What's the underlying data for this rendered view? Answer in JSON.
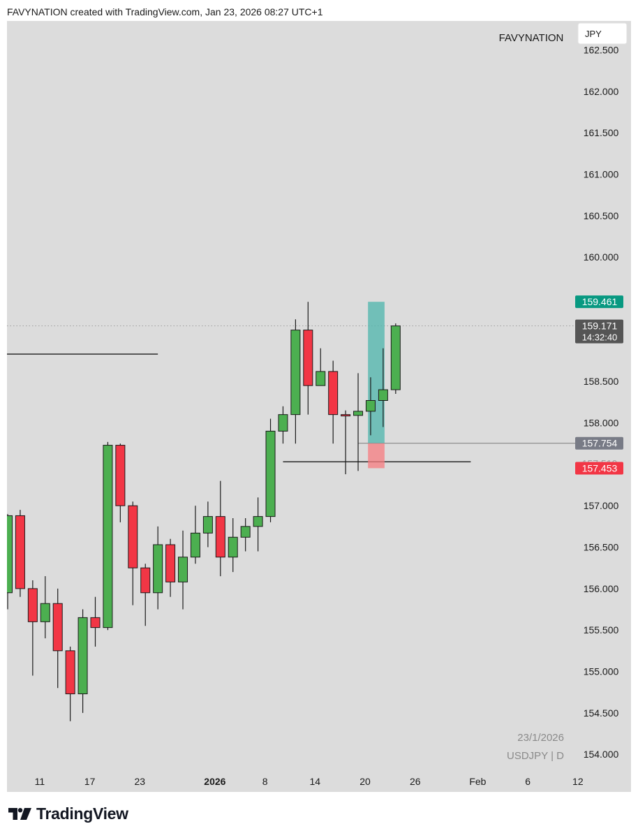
{
  "header": {
    "text": "FAVYNATION created with TradingView.com, Jan 23, 2026 08:27 UTC+1"
  },
  "chart_header": {
    "author": "FAVYNATION",
    "currency": "JPY"
  },
  "watermark": {
    "date": "23/1/2026",
    "symbol": "USDJPY | D"
  },
  "footer": {
    "brand": "TradingView",
    "logo_icon": "tradingview-logo-icon"
  },
  "colors": {
    "background": "#dcdcdc",
    "up": "#4caf50",
    "down": "#f23645",
    "wick": "#1a1a1a",
    "target_zone": "#4db6ac",
    "stop_zone": "#f77c80",
    "target_badge": "#089981",
    "stop_badge": "#f23645",
    "price_badge": "#555555",
    "entry_badge": "#787b86"
  },
  "chart_data": {
    "type": "candlestick",
    "symbol": "USDJPY",
    "timeframe": "D",
    "ylim": [
      153.85,
      162.85
    ],
    "y_ticks": [
      "162.500",
      "162.000",
      "161.500",
      "161.000",
      "160.500",
      "160.000",
      "158.500",
      "158.000",
      "157.000",
      "156.500",
      "156.000",
      "155.500",
      "155.000",
      "154.500",
      "154.000"
    ],
    "x_ticks": [
      {
        "label": "11",
        "index": 2,
        "bold": false
      },
      {
        "label": "17",
        "index": 6,
        "bold": false
      },
      {
        "label": "23",
        "index": 10,
        "bold": false
      },
      {
        "label": "2026",
        "index": 16,
        "bold": true
      },
      {
        "label": "8",
        "index": 20,
        "bold": false
      },
      {
        "label": "14",
        "index": 24,
        "bold": false
      },
      {
        "label": "20",
        "index": 28,
        "bold": false
      },
      {
        "label": "26",
        "index": 32,
        "bold": false
      },
      {
        "label": "Feb",
        "index": 37,
        "bold": false
      },
      {
        "label": "6",
        "index": 41,
        "bold": false
      },
      {
        "label": "12",
        "index": 45,
        "bold": false
      }
    ],
    "candles": [
      {
        "o": 155.95,
        "h": 156.9,
        "l": 155.75,
        "c": 156.88
      },
      {
        "o": 156.88,
        "h": 156.95,
        "l": 155.9,
        "c": 156.0
      },
      {
        "o": 156.0,
        "h": 156.1,
        "l": 154.95,
        "c": 155.6
      },
      {
        "o": 155.6,
        "h": 156.15,
        "l": 155.4,
        "c": 155.82
      },
      {
        "o": 155.82,
        "h": 156.0,
        "l": 154.8,
        "c": 155.25
      },
      {
        "o": 155.25,
        "h": 155.3,
        "l": 154.4,
        "c": 154.73
      },
      {
        "o": 154.73,
        "h": 155.75,
        "l": 154.5,
        "c": 155.65
      },
      {
        "o": 155.65,
        "h": 155.9,
        "l": 155.3,
        "c": 155.53
      },
      {
        "o": 155.53,
        "h": 157.77,
        "l": 155.5,
        "c": 157.73
      },
      {
        "o": 157.73,
        "h": 157.75,
        "l": 156.8,
        "c": 157.0
      },
      {
        "o": 157.0,
        "h": 157.05,
        "l": 155.8,
        "c": 156.25
      },
      {
        "o": 156.25,
        "h": 156.3,
        "l": 155.55,
        "c": 155.95
      },
      {
        "o": 155.95,
        "h": 156.75,
        "l": 155.75,
        "c": 156.53
      },
      {
        "o": 156.53,
        "h": 156.6,
        "l": 155.9,
        "c": 156.08
      },
      {
        "o": 156.08,
        "h": 156.7,
        "l": 155.75,
        "c": 156.38
      },
      {
        "o": 156.38,
        "h": 157.0,
        "l": 156.3,
        "c": 156.67
      },
      {
        "o": 156.67,
        "h": 157.05,
        "l": 156.5,
        "c": 156.87
      },
      {
        "o": 156.87,
        "h": 157.3,
        "l": 156.15,
        "c": 156.38
      },
      {
        "o": 156.38,
        "h": 156.85,
        "l": 156.2,
        "c": 156.62
      },
      {
        "o": 156.62,
        "h": 156.85,
        "l": 156.45,
        "c": 156.75
      },
      {
        "o": 156.75,
        "h": 157.1,
        "l": 156.45,
        "c": 156.87
      },
      {
        "o": 156.87,
        "h": 158.05,
        "l": 156.8,
        "c": 157.9
      },
      {
        "o": 157.9,
        "h": 158.2,
        "l": 157.75,
        "c": 158.1
      },
      {
        "o": 158.1,
        "h": 159.25,
        "l": 157.75,
        "c": 159.12
      },
      {
        "o": 159.12,
        "h": 159.46,
        "l": 158.1,
        "c": 158.45
      },
      {
        "o": 158.45,
        "h": 158.9,
        "l": 158.45,
        "c": 158.62
      },
      {
        "o": 158.62,
        "h": 158.75,
        "l": 157.75,
        "c": 158.1
      },
      {
        "o": 158.1,
        "h": 158.15,
        "l": 157.38,
        "c": 158.09
      },
      {
        "o": 158.09,
        "h": 158.6,
        "l": 157.42,
        "c": 158.14
      },
      {
        "o": 158.14,
        "h": 158.55,
        "l": 157.85,
        "c": 158.27
      },
      {
        "o": 158.27,
        "h": 158.9,
        "l": 157.95,
        "c": 158.4
      },
      {
        "o": 158.4,
        "h": 159.2,
        "l": 158.35,
        "c": 159.17
      }
    ],
    "horizontal_lines": [
      {
        "price": 158.83,
        "from_index": -1.2,
        "to_index": 12.0
      },
      {
        "price": 157.53,
        "from_index": 22.0,
        "to_index": 37.0
      },
      {
        "price": 157.754,
        "from_index": 28.0,
        "to_index": 46.5,
        "thin": true
      }
    ],
    "position": {
      "from_index": 28.9,
      "to_index": 30.0,
      "entry": 157.754,
      "target": 159.461,
      "stop": 157.453
    },
    "current_price_line": 159.171,
    "price_labels": {
      "target": "159.461",
      "current": "159.171",
      "countdown": "14:32:40",
      "entry": "157.754",
      "stop_partial": "157.510",
      "stop": "157.453"
    }
  }
}
